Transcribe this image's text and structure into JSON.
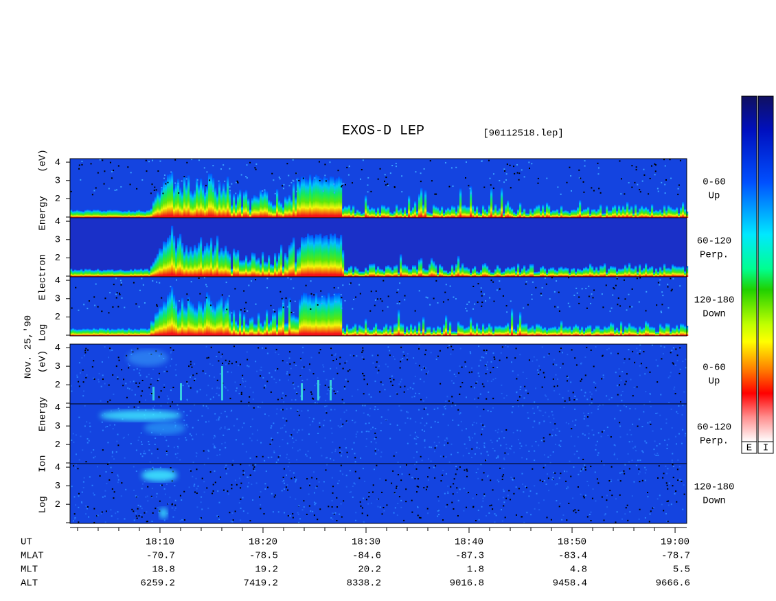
{
  "title": "EXOS-D LEP",
  "file": "[90112518.lep]",
  "date": "Nov. 25,'90",
  "panels": [
    {
      "ylabel": "Log Electron Energy (eV)",
      "ylim": [
        0.97,
        4.19
      ],
      "yticks": [
        2,
        3,
        4
      ],
      "subpanels": [
        {
          "angle": "0-60",
          "direction": "Up"
        },
        {
          "angle": "60-120",
          "direction": "Perp."
        },
        {
          "angle": "120-180",
          "direction": "Down"
        }
      ]
    },
    {
      "ylabel": "Log Ion Energy (eV)",
      "ylim": [
        0.97,
        4.19
      ],
      "yticks": [
        2,
        3,
        4
      ],
      "subpanels": [
        {
          "angle": "0-60",
          "direction": "Up"
        },
        {
          "angle": "60-120",
          "direction": "Perp."
        },
        {
          "angle": "120-180",
          "direction": "Down"
        }
      ]
    }
  ],
  "xlim": [
    1081.27,
    1141.13
  ],
  "xticks": [
    {
      "value": 1090,
      "label": "18:10"
    },
    {
      "value": 1100,
      "label": "18:20"
    },
    {
      "value": 1110,
      "label": "18:30"
    },
    {
      "value": 1120,
      "label": "18:40"
    },
    {
      "value": 1130,
      "label": "18:50"
    },
    {
      "value": 1140,
      "label": "19:00"
    }
  ],
  "xminor": [
    1082,
    1084,
    1086,
    1088,
    1092,
    1094,
    1096,
    1098,
    1102,
    1104,
    1106,
    1108,
    1112,
    1114,
    1116,
    1118,
    1122,
    1124,
    1126,
    1128,
    1132,
    1134,
    1136,
    1138
  ],
  "time_label": "UT",
  "rows": [
    {
      "name": "MLAT",
      "values": [
        -70.7,
        -78.5,
        -84.6,
        -87.3,
        -83.4,
        -78.7
      ]
    },
    {
      "name": "MLT",
      "values": [
        18.8,
        19.2,
        20.2,
        1.8,
        4.8,
        5.5
      ]
    },
    {
      "name": "ALT",
      "values": [
        6259.2,
        7419.2,
        8338.2,
        9016.8,
        9458.4,
        9666.6
      ]
    }
  ],
  "colorbars": [
    "E",
    "I"
  ]
}
